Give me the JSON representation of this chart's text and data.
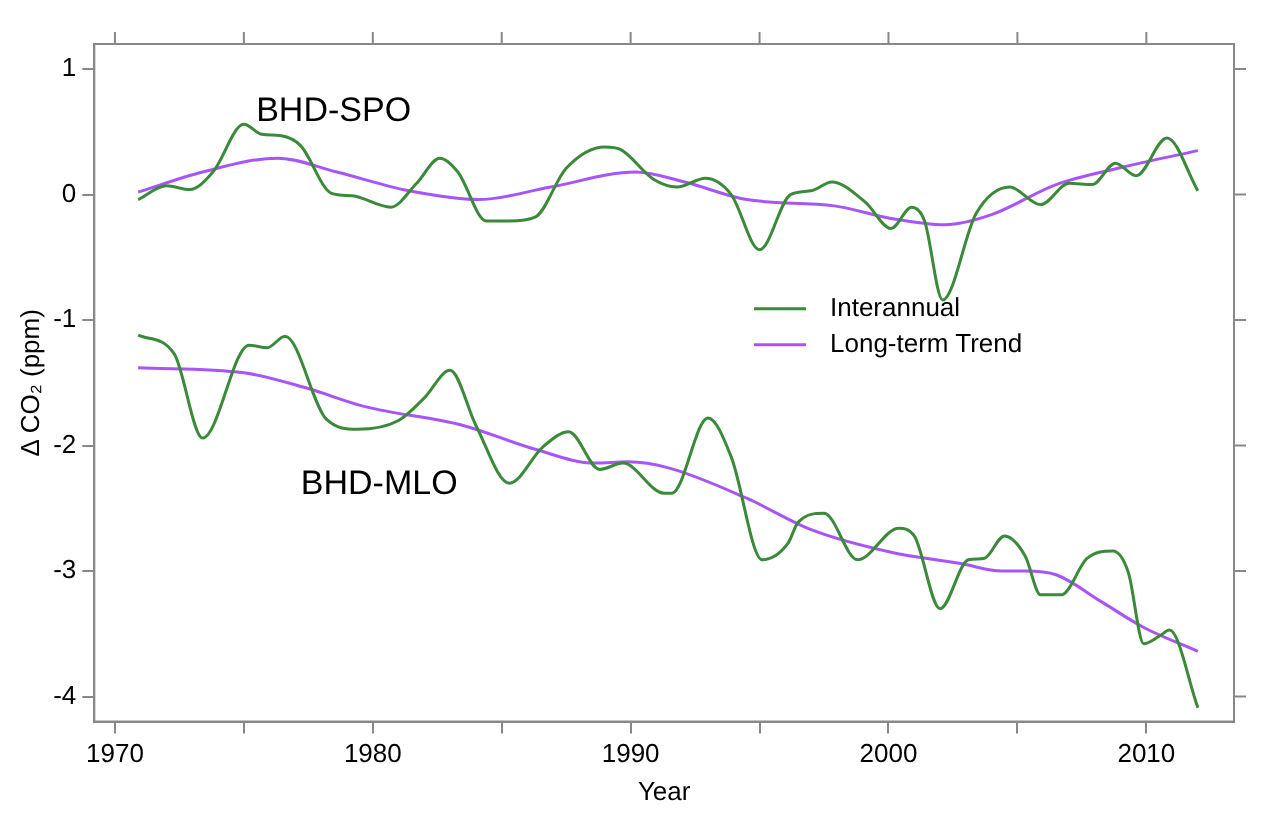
{
  "chart_data": {
    "type": "line",
    "xlabel": "Year",
    "ylabel": "Δ CO₂ (ppm)",
    "xlim": [
      1969.2,
      2013.4
    ],
    "ylim": [
      -4.2,
      1.2
    ],
    "xticks": [
      1970,
      {
        "value": 1975,
        "label": null
      },
      1980,
      {
        "value": 1985,
        "label": null
      },
      1990,
      {
        "value": 1995,
        "label": null
      },
      2000,
      {
        "value": 2005,
        "label": null
      },
      2010
    ],
    "yticks": [
      -4,
      -3,
      -2,
      -1,
      0,
      1
    ],
    "grid": false,
    "legend": "right",
    "line_style": "solid",
    "marker": "none",
    "annotations": [
      "BHD-SPO",
      "BHD-MLO"
    ],
    "series": [
      {
        "name": "Interannual",
        "color": "#3a8a3a",
        "x": [
          1970.9,
          1972.0,
          1972.9,
          1973.8,
          1975.0,
          1975.7,
          1976.4,
          1977.2,
          1978.4,
          1979.2,
          1980.7,
          1981.7,
          1982.6,
          1983.3,
          1984.4,
          1985.3,
          1986.3,
          1987.5,
          1989.0,
          1989.6,
          1990.9,
          1991.8,
          1992.9,
          1993.9,
          1995.0,
          1996.2,
          1997.0,
          1997.8,
          1999.1,
          2000.1,
          2000.9,
          2001.4,
          2002.1,
          2003.4,
          2004.7,
          2005.9,
          2007.0,
          2007.9,
          2008.8,
          2009.6,
          2010.8,
          2012.0
        ],
        "values": [
          -0.04,
          0.07,
          0.04,
          0.18,
          0.56,
          0.48,
          0.47,
          0.39,
          0.01,
          -0.01,
          -0.1,
          0.09,
          0.29,
          0.18,
          -0.21,
          -0.21,
          -0.18,
          0.21,
          0.38,
          0.36,
          0.12,
          0.06,
          0.13,
          0.0,
          -0.44,
          0.0,
          0.03,
          0.1,
          -0.06,
          -0.27,
          -0.1,
          -0.21,
          -0.84,
          -0.15,
          0.06,
          -0.08,
          0.09,
          0.08,
          0.25,
          0.15,
          0.45,
          0.03
        ]
      },
      {
        "name": "Long-term Trend",
        "color": "#a855f7",
        "x": [
          1970.9,
          1973.4,
          1976.3,
          1978.6,
          1981.4,
          1984.1,
          1986.9,
          1990.2,
          1992.1,
          1994.5,
          1997.9,
          2000.1,
          2002.2,
          2004.0,
          2006.5,
          2008.9,
          2012.0
        ],
        "values": [
          0.02,
          0.18,
          0.29,
          0.18,
          0.03,
          -0.04,
          0.06,
          0.18,
          0.1,
          -0.04,
          -0.09,
          -0.19,
          -0.24,
          -0.16,
          0.08,
          0.21,
          0.35
        ]
      },
      {
        "color": "#3a8a3a",
        "x": [
          1970.9,
          1972.3,
          1973.4,
          1975.2,
          1975.9,
          1976.6,
          1978.2,
          1979.4,
          1981.0,
          1982.0,
          1983.0,
          1984.0,
          1985.3,
          1986.6,
          1987.6,
          1988.8,
          1989.7,
          1991.3,
          1991.6,
          1993.0,
          1993.9,
          1995.1,
          1996.1,
          1996.5,
          1997.5,
          1998.8,
          2000.4,
          2001.0,
          2002.0,
          2003.1,
          2003.7,
          2004.5,
          2005.3,
          2005.9,
          2006.7,
          2007.7,
          2008.7,
          2009.3,
          2009.9,
          2010.5,
          2010.9,
          2012.0
        ],
        "values": [
          -1.12,
          -1.27,
          -1.94,
          -1.2,
          -1.22,
          -1.13,
          -1.79,
          -1.87,
          -1.8,
          -1.62,
          -1.4,
          -1.84,
          -2.3,
          -2.01,
          -1.89,
          -2.19,
          -2.14,
          -2.38,
          -2.38,
          -1.78,
          -2.09,
          -2.91,
          -2.78,
          -2.61,
          -2.54,
          -2.91,
          -2.66,
          -2.72,
          -3.3,
          -2.91,
          -2.9,
          -2.72,
          -2.88,
          -3.19,
          -3.19,
          -2.9,
          -2.84,
          -3.01,
          -3.58,
          -3.52,
          -3.47,
          -4.09
        ]
      },
      {
        "color": "#a855f7",
        "x": [
          1970.9,
          1975.0,
          1977.4,
          1979.7,
          1983.5,
          1986.3,
          1988.6,
          1989.9,
          1991.5,
          1994.5,
          1997.0,
          2000.1,
          2002.8,
          2004.4,
          2005.3,
          2006.5,
          2008.3,
          2009.9,
          2012.0
        ],
        "values": [
          -1.38,
          -1.42,
          -1.54,
          -1.69,
          -1.84,
          -2.03,
          -2.14,
          -2.13,
          -2.18,
          -2.42,
          -2.67,
          -2.85,
          -2.94,
          -3.0,
          -3.0,
          -3.03,
          -3.25,
          -3.45,
          -3.64
        ]
      }
    ]
  }
}
